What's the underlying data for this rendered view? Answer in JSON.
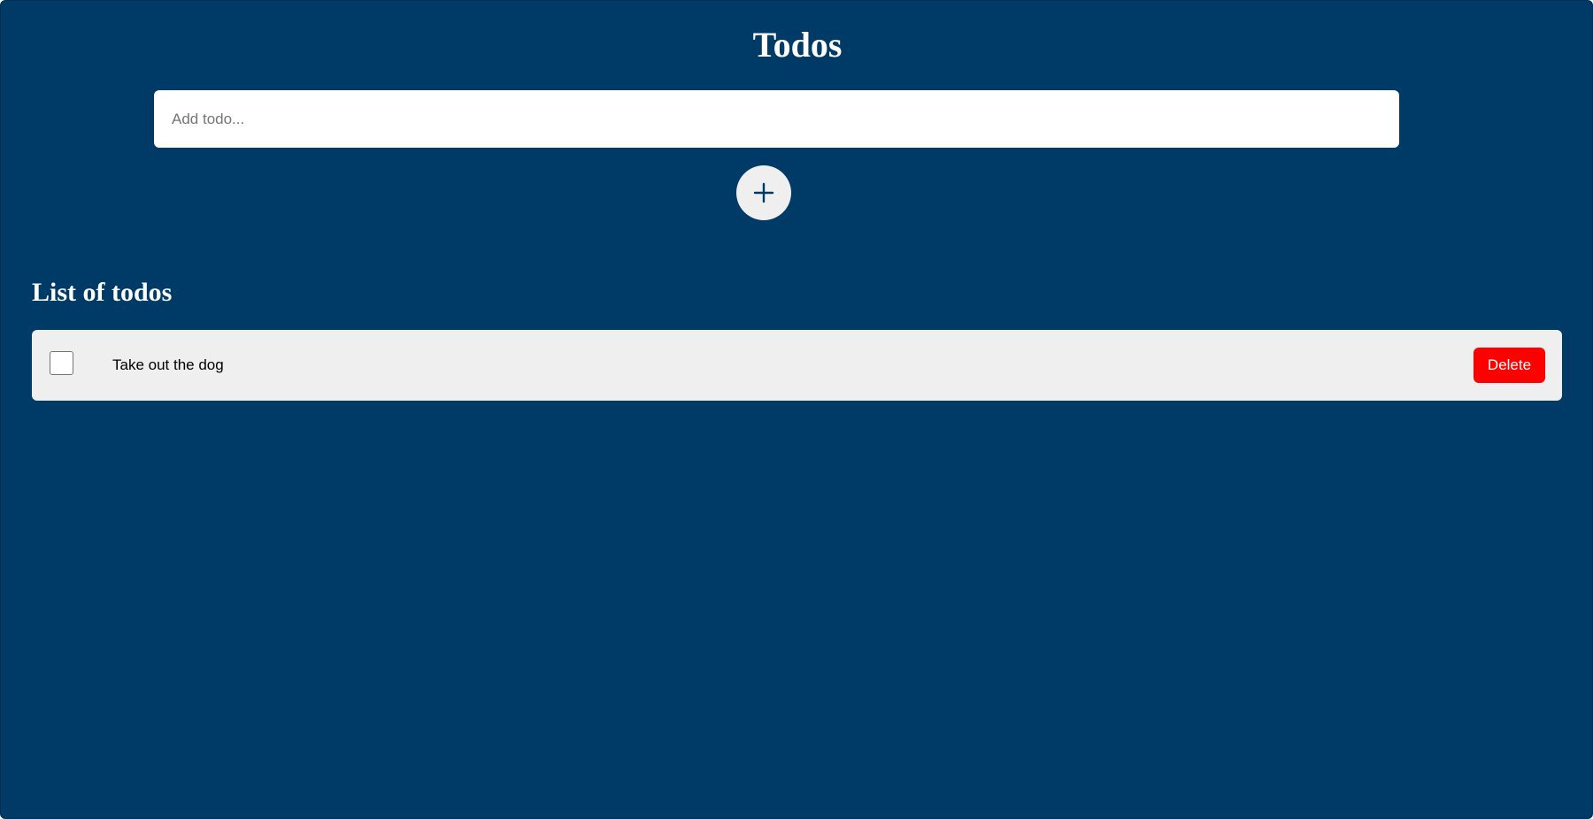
{
  "app": {
    "title": "Todos",
    "background_color": "#003a66"
  },
  "new_todo": {
    "placeholder": "Add todo...",
    "value": "",
    "add_button_icon": "plus-icon"
  },
  "list": {
    "heading": "List of todos",
    "items": [
      {
        "text": "Take out the dog",
        "completed": false,
        "delete_label": "Delete"
      }
    ]
  },
  "colors": {
    "item_background": "#efefef",
    "delete_button": "#ff0000",
    "text_on_dark": "#ffffff"
  }
}
